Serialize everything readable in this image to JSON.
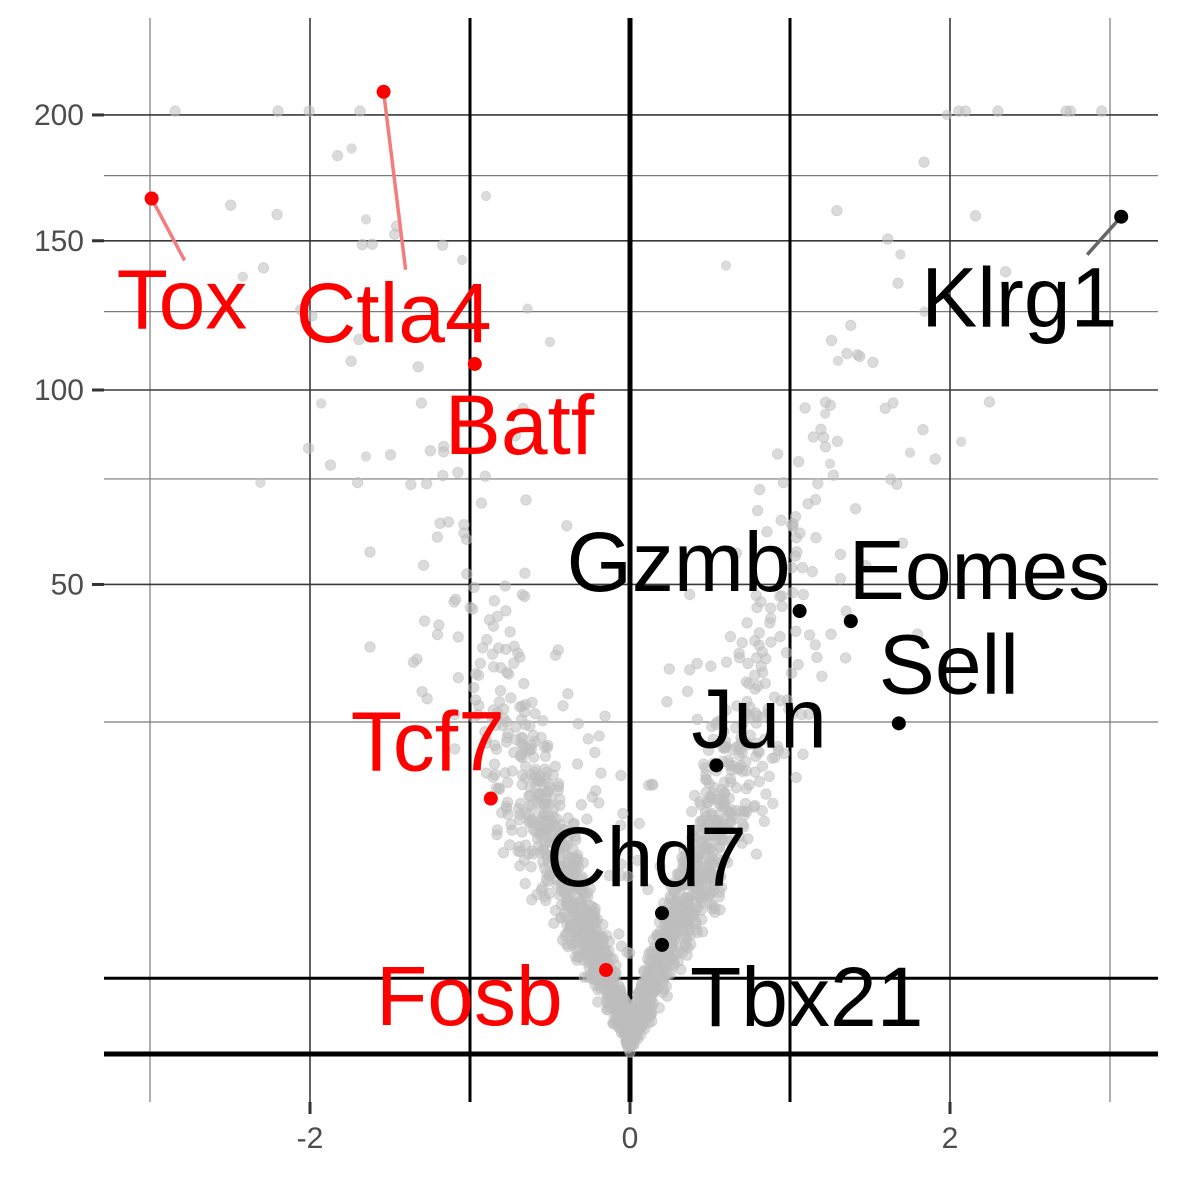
{
  "chart_data": {
    "type": "scatter",
    "title": "",
    "xlabel": "",
    "ylabel": "",
    "xlim": [
      -3.4,
      3.25
    ],
    "ylim": [
      0,
      212
    ],
    "y_scale": "sqrt",
    "grid": true,
    "x_ticks": [
      -2,
      0,
      2
    ],
    "x_tick_labels": [
      "-2",
      "0",
      "2"
    ],
    "y_ticks": [
      50,
      100,
      150,
      200
    ],
    "y_tick_labels": [
      "50",
      "100",
      "150",
      "200"
    ],
    "minor_x": [
      -3,
      -1,
      1,
      3
    ],
    "minor_y": [
      25,
      75,
      125,
      175
    ],
    "threshold_lines": {
      "x": [
        -1,
        1
      ],
      "y": [
        1.3
      ]
    },
    "colors": {
      "down": "#ff0000",
      "up": "#000000",
      "background": "#bdbdbd"
    },
    "background_points": {
      "count": 1700,
      "note_shape": "volcano"
    },
    "highlighted_genes": [
      {
        "gene": "Tox",
        "x": -2.99,
        "y": 166,
        "group": "down"
      },
      {
        "gene": "Ctla4",
        "x": -1.54,
        "y": 210,
        "group": "down"
      },
      {
        "gene": "Batf",
        "x": -0.97,
        "y": 108,
        "group": "down"
      },
      {
        "gene": "Tcf7",
        "x": -0.87,
        "y": 14.8,
        "group": "down"
      },
      {
        "gene": "Fosb",
        "x": -0.15,
        "y": 1.6,
        "group": "down"
      },
      {
        "gene": "Klrg1",
        "x": 3.07,
        "y": 159,
        "group": "up"
      },
      {
        "gene": "Gzmb",
        "x": 1.06,
        "y": 44.5,
        "group": "up"
      },
      {
        "gene": "Eomes",
        "x": 1.38,
        "y": 42.5,
        "group": "up"
      },
      {
        "gene": "Sell",
        "x": 1.68,
        "y": 24.8,
        "group": "up"
      },
      {
        "gene": "Jun",
        "x": 0.54,
        "y": 18.9,
        "group": "up"
      },
      {
        "gene": "Chd7",
        "x": 0.2,
        "y": 4.5,
        "group": "up"
      },
      {
        "gene": "Tbx21",
        "x": 0.2,
        "y": 2.7,
        "group": "up"
      }
    ]
  }
}
